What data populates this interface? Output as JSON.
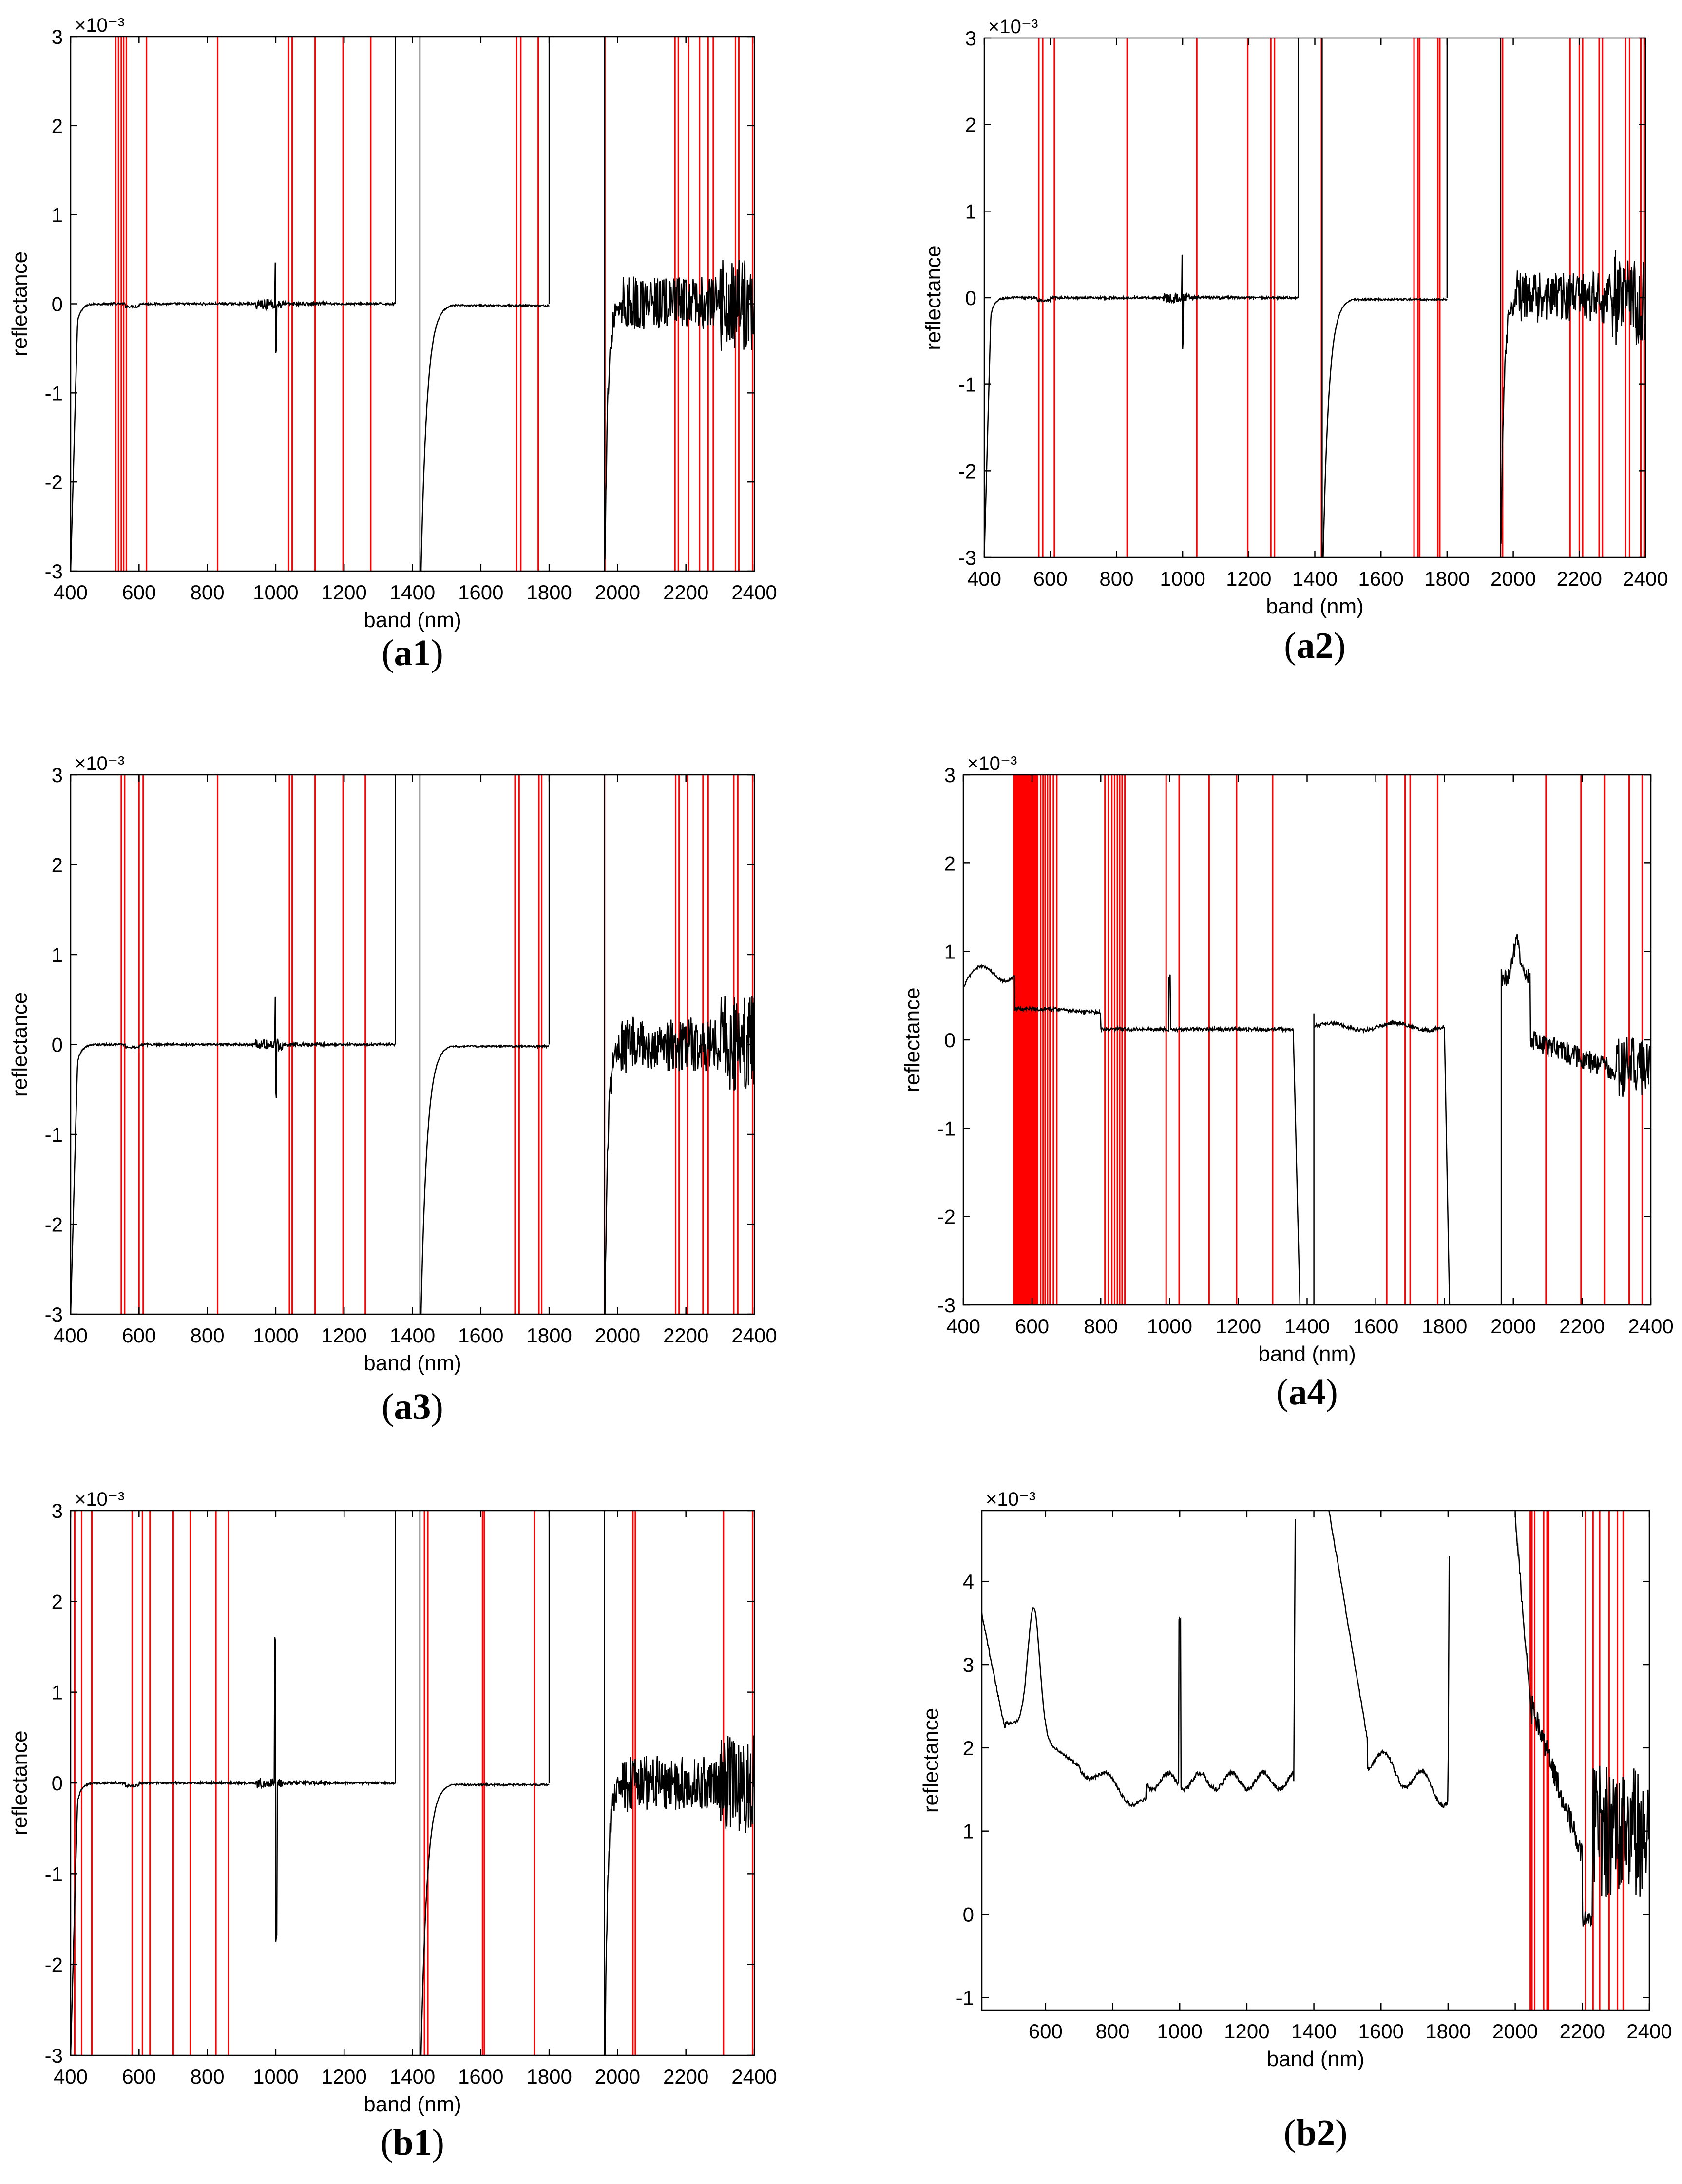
{
  "figure": {
    "panels": [
      {
        "id": "a1",
        "caption_prefix": "(",
        "caption_label": "a1",
        "caption_suffix": ")"
      },
      {
        "id": "a2",
        "caption_prefix": "(",
        "caption_label": "a2",
        "caption_suffix": ")"
      },
      {
        "id": "a3",
        "caption_prefix": "(",
        "caption_label": "a3",
        "caption_suffix": ")"
      },
      {
        "id": "a4",
        "caption_prefix": "(",
        "caption_label": "a4",
        "caption_suffix": ")"
      },
      {
        "id": "b1",
        "caption_prefix": "(",
        "caption_label": "b1",
        "caption_suffix": ")"
      },
      {
        "id": "b2",
        "caption_prefix": "(",
        "caption_label": "b2",
        "caption_suffix": ")"
      }
    ]
  },
  "colors": {
    "spectrum": "#000000",
    "selected_bands": "#ff0000",
    "axes": "#000000",
    "background": "#ffffff"
  },
  "chart_data": [
    {
      "panel": "a1",
      "type": "line",
      "title": "",
      "xlabel": "band (nm)",
      "ylabel": "reflectance",
      "exponent_label": "×10⁻³",
      "xlim": [
        400,
        2400
      ],
      "ylim": [
        -3,
        3
      ],
      "xticks": [
        400,
        600,
        800,
        1000,
        1200,
        1400,
        1600,
        1800,
        2000,
        2200,
        2400
      ],
      "yticks": [
        -3,
        -2,
        -1,
        0,
        1,
        2,
        3
      ],
      "grid": false,
      "profile": "std",
      "selected_bands_nm": [
        532,
        540,
        548,
        555,
        563,
        622,
        830,
        1038,
        1048,
        1115,
        1197,
        1278,
        1705,
        1717,
        1768,
        1963,
        2168,
        2178,
        2208,
        2240,
        2265,
        2280,
        2345,
        2355,
        2395
      ]
    },
    {
      "panel": "a2",
      "type": "line",
      "title": "",
      "xlabel": "band (nm)",
      "ylabel": "reflectance",
      "exponent_label": "×10⁻³",
      "xlim": [
        400,
        2400
      ],
      "ylim": [
        -3,
        3
      ],
      "xticks": [
        400,
        600,
        800,
        1000,
        1200,
        1400,
        1600,
        1800,
        2000,
        2200,
        2400
      ],
      "yticks": [
        -3,
        -2,
        -1,
        0,
        1,
        2,
        3
      ],
      "grid": false,
      "profile": "std",
      "selected_bands_nm": [
        565,
        577,
        612,
        832,
        1043,
        1197,
        1267,
        1278,
        1420,
        1700,
        1712,
        1717,
        1772,
        1778,
        1962,
        1968,
        2172,
        2200,
        2210,
        2260,
        2270,
        2340,
        2352,
        2386,
        2396
      ]
    },
    {
      "panel": "a3",
      "type": "line",
      "title": "",
      "xlabel": "band (nm)",
      "ylabel": "reflectance",
      "exponent_label": "×10⁻³",
      "xlim": [
        400,
        2400
      ],
      "ylim": [
        -3,
        3
      ],
      "xticks": [
        400,
        600,
        800,
        1000,
        1200,
        1400,
        1600,
        1800,
        2000,
        2200,
        2400
      ],
      "yticks": [
        -3,
        -2,
        -1,
        0,
        1,
        2,
        3
      ],
      "grid": false,
      "profile": "std",
      "selected_bands_nm": [
        548,
        558,
        600,
        612,
        830,
        1040,
        1048,
        1115,
        1197,
        1262,
        1700,
        1712,
        1770,
        1778,
        1962,
        2170,
        2180,
        2205,
        2250,
        2265,
        2340,
        2352,
        2395
      ]
    },
    {
      "panel": "a4",
      "type": "line",
      "title": "",
      "xlabel": "band (nm)",
      "ylabel": "reflectance",
      "exponent_label": "×10⁻³",
      "xlim": [
        400,
        2400
      ],
      "ylim": [
        -3,
        3
      ],
      "xticks": [
        400,
        600,
        800,
        1000,
        1200,
        1400,
        1600,
        1800,
        2000,
        2200,
        2400
      ],
      "yticks": [
        -3,
        -2,
        -1,
        0,
        1,
        2,
        3
      ],
      "grid": false,
      "profile": "a4",
      "selected_band_block_nm": [
        545,
        618
      ],
      "selected_bands_nm": [
        625,
        632,
        638,
        645,
        652,
        662,
        672,
        812,
        822,
        832,
        840,
        848,
        855,
        862,
        870,
        990,
        1028,
        1115,
        1195,
        1300,
        1632,
        1685,
        1700,
        1780,
        2095,
        2197,
        2265,
        2337,
        2375
      ]
    },
    {
      "panel": "b1",
      "type": "line",
      "title": "",
      "xlabel": "band (nm)",
      "ylabel": "reflectance",
      "exponent_label": "×10⁻³",
      "xlim": [
        400,
        2400
      ],
      "ylim": [
        -3,
        3
      ],
      "xticks": [
        400,
        600,
        800,
        1000,
        1200,
        1400,
        1600,
        1800,
        2000,
        2200,
        2400
      ],
      "yticks": [
        -3,
        -2,
        -1,
        0,
        1,
        2,
        3
      ],
      "grid": false,
      "profile": "b1",
      "selected_bands_nm": [
        412,
        432,
        462,
        580,
        610,
        632,
        700,
        750,
        825,
        862,
        1435,
        1445,
        1605,
        1610,
        1757,
        2045,
        2052,
        2310,
        2395
      ]
    },
    {
      "panel": "b2",
      "type": "line",
      "title": "",
      "xlabel": "band (nm)",
      "ylabel": "reflectance",
      "exponent_label": "×10⁻³",
      "xlim": [
        410,
        2400
      ],
      "ylim": [
        -1.15,
        4.85
      ],
      "xticks": [
        600,
        800,
        1000,
        1200,
        1400,
        1600,
        1800,
        2000,
        2200,
        2400
      ],
      "yticks": [
        -1,
        0,
        1,
        2,
        3,
        4
      ],
      "grid": false,
      "profile": "b2",
      "selected_bands_nm": [
        2045,
        2050,
        2058,
        2085,
        2095,
        2100,
        2210,
        2232,
        2252,
        2280,
        2305,
        2322
      ]
    }
  ]
}
